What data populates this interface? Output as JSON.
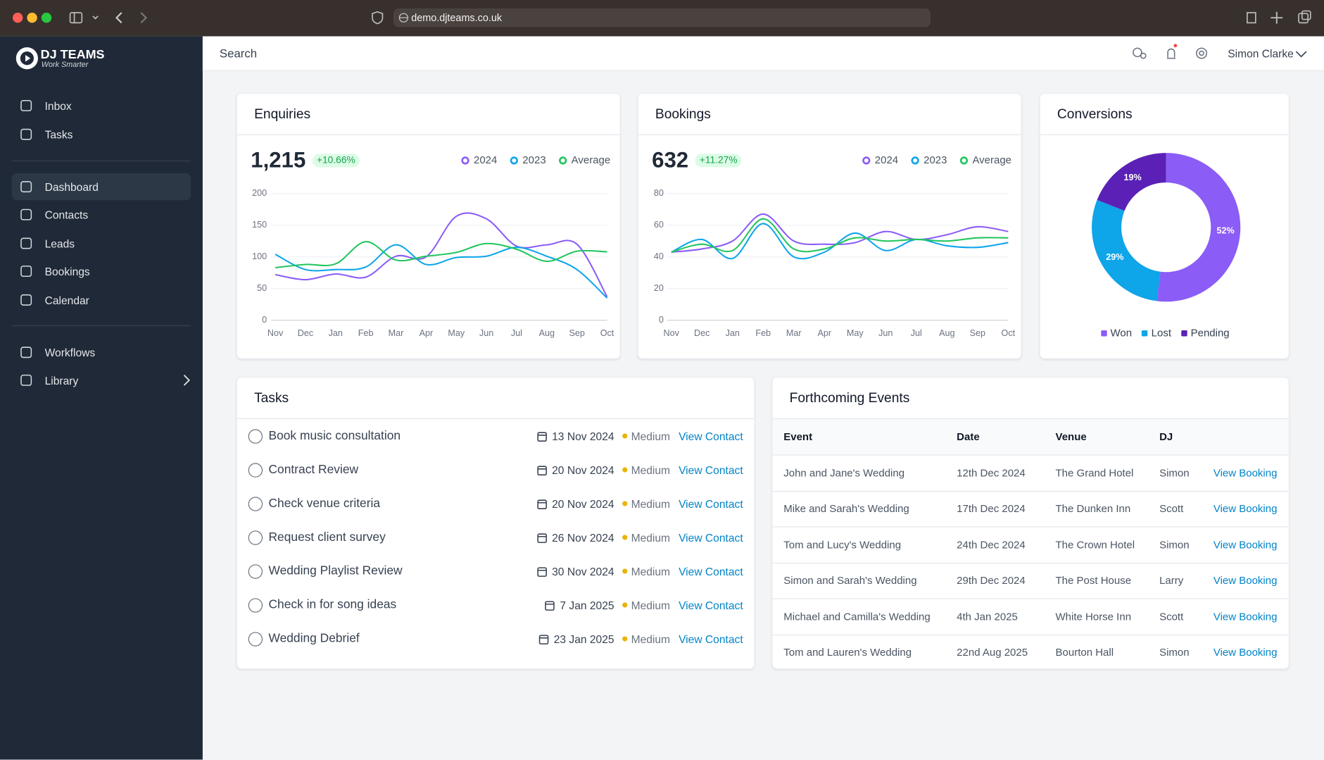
{
  "browser": {
    "url": "demo.djteams.co.uk"
  },
  "sidebar": {
    "logo": "DJ TEAMS",
    "tagline": "Work Smarter",
    "nav": [
      {
        "label": "Inbox"
      },
      {
        "label": "Tasks"
      },
      {
        "label": "Dashboard",
        "active": true
      },
      {
        "label": "Contacts"
      },
      {
        "label": "Leads"
      },
      {
        "label": "Bookings"
      },
      {
        "label": "Calendar"
      },
      {
        "label": "Workflows"
      },
      {
        "label": "Library"
      }
    ]
  },
  "header": {
    "search": "Search",
    "user": "Simon Clarke"
  },
  "chart_data": [
    {
      "type": "line",
      "title": "Enquiries",
      "total": "1,215",
      "change": "+10.66%",
      "categories": [
        "Nov",
        "Dec",
        "Jan",
        "Feb",
        "Mar",
        "Apr",
        "May",
        "Jun",
        "Jul",
        "Aug",
        "Sep",
        "Oct"
      ],
      "series": [
        {
          "name": "2024",
          "color": "#8b5cf6",
          "values": [
            72,
            64,
            73,
            68,
            101,
            100,
            164,
            160,
            117,
            119,
            120,
            37
          ]
        },
        {
          "name": "2023",
          "color": "#0ea5e9",
          "values": [
            104,
            80,
            80,
            84,
            119,
            88,
            99,
            101,
            115,
            101,
            80,
            35
          ]
        },
        {
          "name": "Average",
          "color": "#22c55e",
          "values": [
            83,
            88,
            89,
            124,
            95,
            101,
            107,
            121,
            112,
            93,
            109,
            108
          ]
        }
      ],
      "ylim": [
        0,
        200
      ],
      "yticks": [
        0,
        50,
        100,
        150,
        200
      ],
      "grid": true
    },
    {
      "type": "line",
      "title": "Bookings",
      "total": "632",
      "change": "+11.27%",
      "categories": [
        "Nov",
        "Dec",
        "Jan",
        "Feb",
        "Mar",
        "Apr",
        "May",
        "Jun",
        "Jul",
        "Aug",
        "Sep",
        "Oct"
      ],
      "series": [
        {
          "name": "2024",
          "color": "#8b5cf6",
          "values": [
            43,
            45,
            50,
            67,
            50,
            48,
            49,
            56,
            51,
            54,
            59,
            56
          ]
        },
        {
          "name": "2023",
          "color": "#0ea5e9",
          "values": [
            43,
            51,
            39,
            61,
            40,
            43,
            55,
            44,
            51,
            47,
            46,
            49
          ]
        },
        {
          "name": "Average",
          "color": "#22c55e",
          "values": [
            43,
            48,
            44,
            64,
            45,
            45,
            52,
            50,
            51,
            50,
            52,
            52
          ]
        }
      ],
      "ylim": [
        0,
        80
      ],
      "yticks": [
        0,
        20,
        40,
        60,
        80
      ],
      "grid": true
    },
    {
      "type": "pie",
      "title": "Conversions",
      "categories": [
        "Won",
        "Lost",
        "Pending"
      ],
      "values": [
        52,
        29,
        19
      ],
      "value_labels": [
        "52%",
        "29%",
        "19%"
      ],
      "colors": [
        "#8b5cf6",
        "#0ea5e9",
        "#5b21b6"
      ]
    }
  ],
  "tasks": {
    "title": "Tasks",
    "items": [
      {
        "label": "Book music consultation",
        "date": "13 Nov 2024",
        "priority": "Medium",
        "action": "View Contact"
      },
      {
        "label": "Contract Review",
        "date": "20 Nov 2024",
        "priority": "Medium",
        "action": "View Contact"
      },
      {
        "label": "Check venue criteria",
        "date": "20 Nov 2024",
        "priority": "Medium",
        "action": "View Contact"
      },
      {
        "label": "Request client survey",
        "date": "26 Nov 2024",
        "priority": "Medium",
        "action": "View Contact"
      },
      {
        "label": "Wedding Playlist Review",
        "date": "30 Nov 2024",
        "priority": "Medium",
        "action": "View Contact"
      },
      {
        "label": "Check in for song ideas",
        "date": "7 Jan 2025",
        "priority": "Medium",
        "action": "View Contact"
      },
      {
        "label": "Wedding Debrief",
        "date": "23 Jan 2025",
        "priority": "Medium",
        "action": "View Contact"
      }
    ]
  },
  "events": {
    "title": "Forthcoming Events",
    "columns": [
      "Event",
      "Date",
      "Venue",
      "DJ"
    ],
    "rows": [
      [
        "John and Jane's Wedding",
        "12th Dec 2024",
        "The Grand Hotel",
        "Simon",
        "View Booking"
      ],
      [
        "Mike and Sarah's Wedding",
        "17th Dec 2024",
        "The Dunken Inn",
        "Scott",
        "View Booking"
      ],
      [
        "Tom and Lucy's Wedding",
        "24th Dec 2024",
        "The Crown Hotel",
        "Simon",
        "View Booking"
      ],
      [
        "Simon and Sarah's Wedding",
        "29th Dec 2024",
        "The Post House",
        "Larry",
        "View Booking"
      ],
      [
        "Michael and Camilla's Wedding",
        "4th Jan 2025",
        "White Horse Inn",
        "Scott",
        "View Booking"
      ],
      [
        "Tom and Lauren's Wedding",
        "22nd Aug 2025",
        "Bourton Hall",
        "Simon",
        "View Booking"
      ]
    ]
  }
}
